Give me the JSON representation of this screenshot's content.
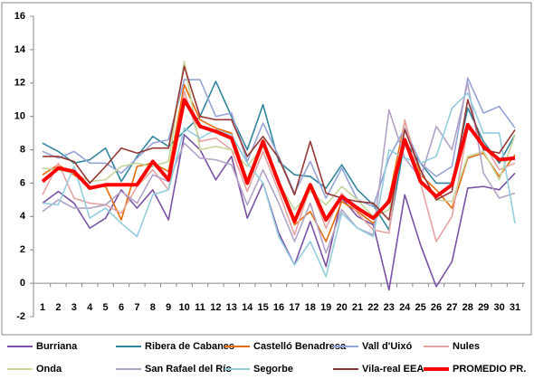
{
  "chart_data": {
    "type": "line",
    "categories": [
      "1",
      "2",
      "3",
      "4",
      "5",
      "6",
      "7",
      "8",
      "9",
      "10",
      "11",
      "12",
      "13",
      "14",
      "15",
      "16",
      "17",
      "18",
      "19",
      "20",
      "21",
      "22",
      "23",
      "24",
      "25",
      "26",
      "27",
      "28",
      "29",
      "30",
      "31"
    ],
    "ylim": [
      -2,
      16
    ],
    "yticks": [
      -2,
      0,
      2,
      4,
      6,
      8,
      10,
      12,
      14,
      16
    ],
    "grid": false,
    "series": [
      {
        "name": "Burriana",
        "color": "#7a52a5",
        "values": [
          4.8,
          5.5,
          4.8,
          3.3,
          3.9,
          5.6,
          4.5,
          5.6,
          3.8,
          8.9,
          8.0,
          6.2,
          7.6,
          3.9,
          6.0,
          3.0,
          1.1,
          3.7,
          1.0,
          5.1,
          4.0,
          3.5,
          -0.4,
          5.3,
          2.3,
          -0.2,
          1.3,
          5.7,
          5.8,
          5.6,
          6.6
        ]
      },
      {
        "name": "Ribera de Cabanes",
        "color": "#31859c",
        "values": [
          8.4,
          7.9,
          7.2,
          7.4,
          8.1,
          6.1,
          7.6,
          8.8,
          8.2,
          9.1,
          10.0,
          12.1,
          10.0,
          8.0,
          10.7,
          7.3,
          6.5,
          6.4,
          5.7,
          7.1,
          5.6,
          4.7,
          3.2,
          8.5,
          7.2,
          6.0,
          6.0,
          10.5,
          8.5,
          7.2,
          8.9
        ]
      },
      {
        "name": "Castelló Benadresa",
        "color": "#e46c0a",
        "values": [
          6.5,
          7.1,
          6.5,
          5.8,
          5.8,
          3.8,
          7.0,
          7.2,
          6.7,
          11.9,
          9.8,
          9.3,
          9.0,
          6.2,
          8.6,
          6.2,
          3.5,
          4.3,
          2.5,
          4.9,
          4.3,
          3.6,
          5.1,
          9.7,
          6.5,
          5.6,
          4.5,
          7.5,
          7.8,
          6.4,
          7.7
        ]
      },
      {
        "name": "Vall d'Uixó",
        "color": "#95a3d6",
        "values": [
          7.9,
          7.5,
          7.9,
          7.2,
          7.2,
          6.6,
          7.5,
          8.4,
          8.6,
          12.2,
          12.2,
          10.0,
          10.2,
          7.3,
          9.6,
          7.6,
          5.4,
          7.3,
          5.1,
          6.9,
          5.0,
          4.6,
          7.5,
          9.3,
          7.2,
          6.4,
          7.0,
          12.3,
          10.2,
          10.6,
          9.3
        ]
      },
      {
        "name": "Nules",
        "color": "#e6a3a3",
        "values": [
          5.3,
          7.2,
          5.1,
          4.8,
          4.7,
          4.2,
          5.8,
          6.8,
          5.6,
          11.5,
          8.5,
          8.7,
          8.0,
          5.5,
          7.9,
          5.5,
          2.9,
          5.8,
          3.3,
          5.4,
          4.2,
          3.2,
          3.0,
          9.8,
          6.0,
          2.5,
          4.0,
          9.3,
          8.4,
          6.8,
          7.2
        ]
      },
      {
        "name": "Onda",
        "color": "#c3d69b",
        "values": [
          6.9,
          6.8,
          6.6,
          6.1,
          6.2,
          7.0,
          7.2,
          7.0,
          7.3,
          13.3,
          8.0,
          8.2,
          8.0,
          7.0,
          8.2,
          6.0,
          4.4,
          5.5,
          4.7,
          5.8,
          5.0,
          4.0,
          4.4,
          8.5,
          6.2,
          5.0,
          4.9,
          7.6,
          7.9,
          6.2,
          8.9
        ]
      },
      {
        "name": "San Rafael del Río",
        "color": "#b3a2c7",
        "values": [
          4.3,
          5.0,
          4.5,
          4.5,
          4.7,
          5.5,
          4.8,
          6.5,
          6.1,
          8.4,
          7.5,
          7.4,
          7.1,
          4.7,
          6.8,
          4.8,
          2.5,
          4.8,
          1.8,
          4.4,
          3.3,
          2.9,
          10.4,
          7.5,
          6.3,
          9.4,
          8.0,
          12.0,
          6.6,
          5.1,
          5.4
        ]
      },
      {
        "name": "Segorbe",
        "color": "#93cddd",
        "values": [
          4.8,
          4.7,
          7.0,
          3.9,
          4.5,
          3.6,
          2.8,
          5.3,
          5.6,
          9.3,
          8.7,
          9.2,
          8.9,
          7.2,
          6.0,
          2.8,
          1.1,
          2.5,
          0.4,
          4.2,
          3.3,
          2.8,
          8.0,
          7.5,
          7.2,
          7.6,
          10.5,
          11.4,
          9.0,
          9.0,
          3.6
        ]
      },
      {
        "name": "Vila-real EEA",
        "color": "#953735",
        "values": [
          7.6,
          7.6,
          7.3,
          6.0,
          7.0,
          8.1,
          7.8,
          8.1,
          8.1,
          13.0,
          10.0,
          9.8,
          9.8,
          7.6,
          8.8,
          7.5,
          5.3,
          8.5,
          5.4,
          5.1,
          4.9,
          4.8,
          3.8,
          9.2,
          6.8,
          5.0,
          5.5,
          11.0,
          8.0,
          7.8,
          9.2
        ]
      },
      {
        "name": "PROMEDIO PR.",
        "color": "#ff0000",
        "values": [
          6.1,
          6.9,
          6.7,
          5.7,
          5.9,
          5.9,
          5.9,
          7.3,
          6.2,
          11.0,
          9.4,
          9.1,
          8.7,
          6.0,
          8.5,
          6.0,
          3.7,
          5.9,
          3.8,
          5.2,
          4.5,
          3.9,
          4.9,
          8.6,
          6.1,
          5.2,
          5.9,
          9.5,
          8.2,
          7.4,
          7.5
        ]
      }
    ]
  }
}
